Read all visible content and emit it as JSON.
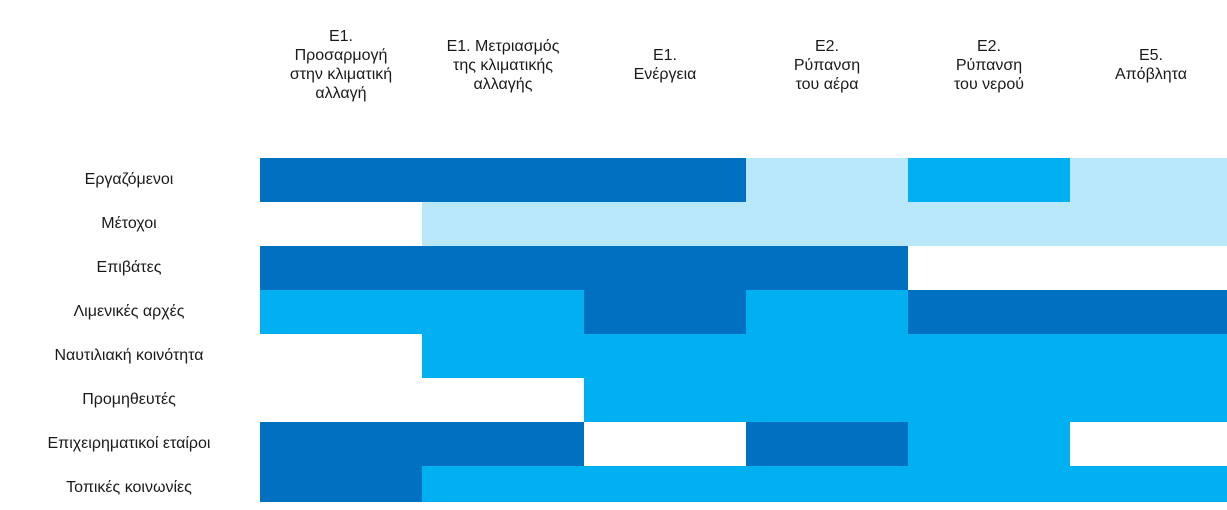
{
  "chart_data": {
    "type": "heatmap",
    "title": "",
    "columns": [
      "Ε1.\nΠροσαρμογή\nστην κλιματική\nαλλαγή",
      "Ε1. Μετριασμός\nτης κλιματικής\nαλλαγής",
      "Ε1.\nΕνέργεια",
      "Ε2.\nΡύπανση\nτου αέρα",
      "Ε2.\nΡύπανση\nτου νερού",
      "Ε5.\nΑπόβλητα"
    ],
    "rows": [
      "Εργαζόμενοι",
      "Μέτοχοι",
      "Επιβάτες",
      "Λιμενικές αρχές",
      "Ναυτιλιακή κοινότητα",
      "Προμηθευτές",
      "Επιχειρηματικοί εταίροι",
      "Τοπικές κοινωνίες"
    ],
    "levels": {
      "0": "#ffffff",
      "1": "#b9e8fb",
      "2": "#00b0f0",
      "3": "#0070c0"
    },
    "values": [
      [
        3,
        3,
        3,
        1,
        2,
        1
      ],
      [
        0,
        1,
        1,
        1,
        1,
        1
      ],
      [
        3,
        3,
        3,
        3,
        0,
        0
      ],
      [
        2,
        2,
        3,
        2,
        3,
        3
      ],
      [
        0,
        2,
        2,
        2,
        2,
        2
      ],
      [
        0,
        0,
        2,
        2,
        2,
        2
      ],
      [
        3,
        3,
        0,
        3,
        2,
        0
      ],
      [
        3,
        2,
        2,
        2,
        2,
        2
      ]
    ],
    "legend": false,
    "grid": false
  }
}
